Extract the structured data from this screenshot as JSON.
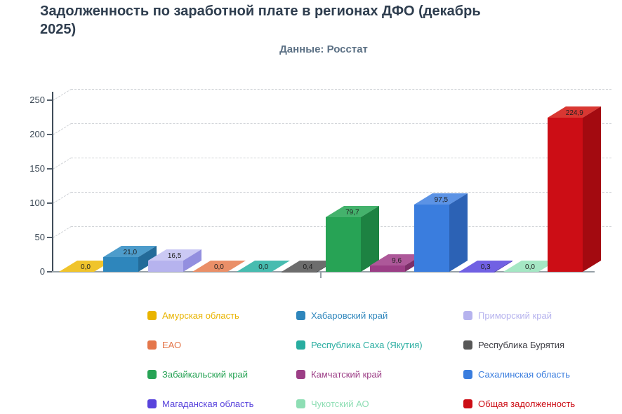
{
  "header": {
    "title_lines": [
      "Задолженность по заработной плате в регионах ДФО (декабрь",
      "2025)"
    ],
    "subtitle": "Данные: Росстат"
  },
  "chart_data": {
    "type": "bar",
    "style": "3d-column",
    "title": "Задолженность по заработной плате в регионах ДФО (декабрь 2025)",
    "subtitle": "Данные: Росстат",
    "xlabel": "",
    "ylabel": "",
    "categories": [
      ""
    ],
    "ylim": [
      0,
      250
    ],
    "yticks": [
      0,
      50,
      100,
      150,
      200,
      250
    ],
    "grid": "dashed",
    "legend_position": "bottom",
    "legend_columns": 3,
    "value_decimal_separator": ",",
    "series": [
      {
        "name": "Амурская область",
        "value": 0.0,
        "label": "0,0",
        "color": "#E9B400",
        "top": "#F0C42C",
        "side": "#BC9100"
      },
      {
        "name": "Хабаровский край",
        "value": 21.0,
        "label": "21,0",
        "color": "#2E86BC",
        "top": "#4D9CCB",
        "side": "#236B99"
      },
      {
        "name": "Приморский край",
        "value": 16.5,
        "label": "16,5",
        "color": "#B6B3EE",
        "top": "#CBC9F4",
        "side": "#938FDF"
      },
      {
        "name": "ЕАО",
        "value": 0.0,
        "label": "0,0",
        "color": "#E4764A",
        "top": "#EA8F68",
        "side": "#BC5C37"
      },
      {
        "name": "Республика Саха (Якутия)",
        "value": 0.0,
        "label": "0,0",
        "color": "#28ADA0",
        "top": "#47BCB0",
        "side": "#1F8B80"
      },
      {
        "name": "Республика Бурятия",
        "value": 0.4,
        "label": "0,4",
        "color": "#575757",
        "top": "#6D6D6D",
        "side": "#424242",
        "legend_text": "#3F3F46"
      },
      {
        "name": "Забайкальский край",
        "value": 79.7,
        "label": "79,7",
        "color": "#27A355",
        "top": "#44B26C",
        "side": "#1D8242"
      },
      {
        "name": "Камчатский край",
        "value": 9.6,
        "label": "9,6",
        "color": "#9C3E86",
        "top": "#AD5899",
        "side": "#7C2F69"
      },
      {
        "name": "Сахалинская область",
        "value": 97.5,
        "label": "97,5",
        "color": "#3A7DDE",
        "top": "#5C93E5",
        "side": "#2C62B5"
      },
      {
        "name": "Магаданская область",
        "value": 0.3,
        "label": "0,3",
        "color": "#5843DC",
        "top": "#7161E3",
        "side": "#4533B2"
      },
      {
        "name": "Чукотский АО",
        "value": 0.0,
        "label": "0,0",
        "color": "#8EDEB4",
        "top": "#A5E7C4",
        "side": "#70C697"
      },
      {
        "name": "Общая задолженность",
        "value": 224.9,
        "label": "224,9",
        "color": "#CC0D15",
        "top": "#D93732",
        "side": "#A30A10"
      }
    ]
  }
}
